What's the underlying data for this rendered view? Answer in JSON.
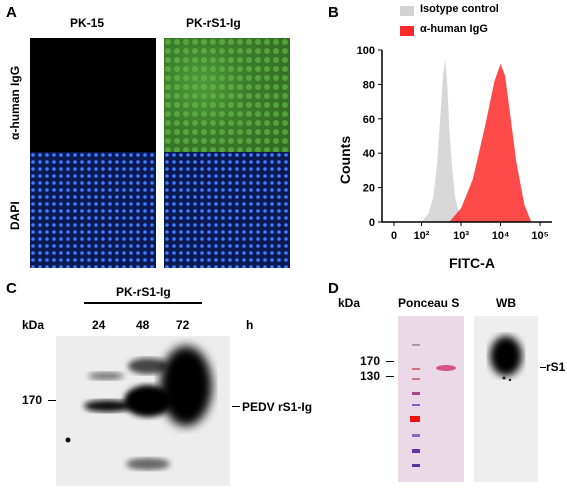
{
  "panel_a": {
    "letter": "A",
    "columns": [
      "PK-15",
      "PK-rS1-Ig"
    ],
    "rows": [
      "α-human IgG",
      "DAPI"
    ]
  },
  "panel_b": {
    "letter": "B",
    "legend": [
      {
        "label": "Isotype control",
        "color": "#d3d3d3"
      },
      {
        "label": "α-human IgG",
        "color": "#ff2a2a"
      }
    ],
    "ylabel": "Counts",
    "xlabel": "FITC-A",
    "yticks": [
      "0",
      "20",
      "40",
      "60",
      "80",
      "100"
    ],
    "xticks": [
      "0",
      "10²",
      "10³",
      "10⁴",
      "10⁵"
    ]
  },
  "panel_c": {
    "letter": "C",
    "group": "PK-rS1-Ig",
    "unit_left": "kDa",
    "lanes": [
      "24",
      "48",
      "72"
    ],
    "unit_right": "h",
    "marker": "170",
    "band_label": "PEDV rS1-Ig"
  },
  "panel_d": {
    "letter": "D",
    "unit_left": "kDa",
    "stain1": "Ponceau S",
    "stain2": "WB",
    "markers": [
      "170",
      "130"
    ],
    "band_label": "rS1"
  },
  "chart_data": {
    "type": "area",
    "title": "",
    "xlabel": "FITC-A",
    "ylabel": "Counts",
    "xscale": "log",
    "ylim": [
      0,
      100
    ],
    "series": [
      {
        "name": "Isotype control",
        "x": [
          100,
          150,
          200,
          250,
          300,
          350,
          400,
          450,
          500,
          600,
          700,
          900,
          1200
        ],
        "y": [
          0,
          5,
          15,
          35,
          62,
          85,
          95,
          80,
          55,
          30,
          15,
          5,
          0
        ]
      },
      {
        "name": "α-human IgG",
        "x": [
          500,
          1000,
          2000,
          4000,
          7000,
          10000,
          13000,
          18000,
          25000,
          40000,
          60000
        ],
        "y": [
          0,
          8,
          25,
          55,
          82,
          92,
          85,
          60,
          35,
          10,
          0
        ]
      }
    ]
  }
}
